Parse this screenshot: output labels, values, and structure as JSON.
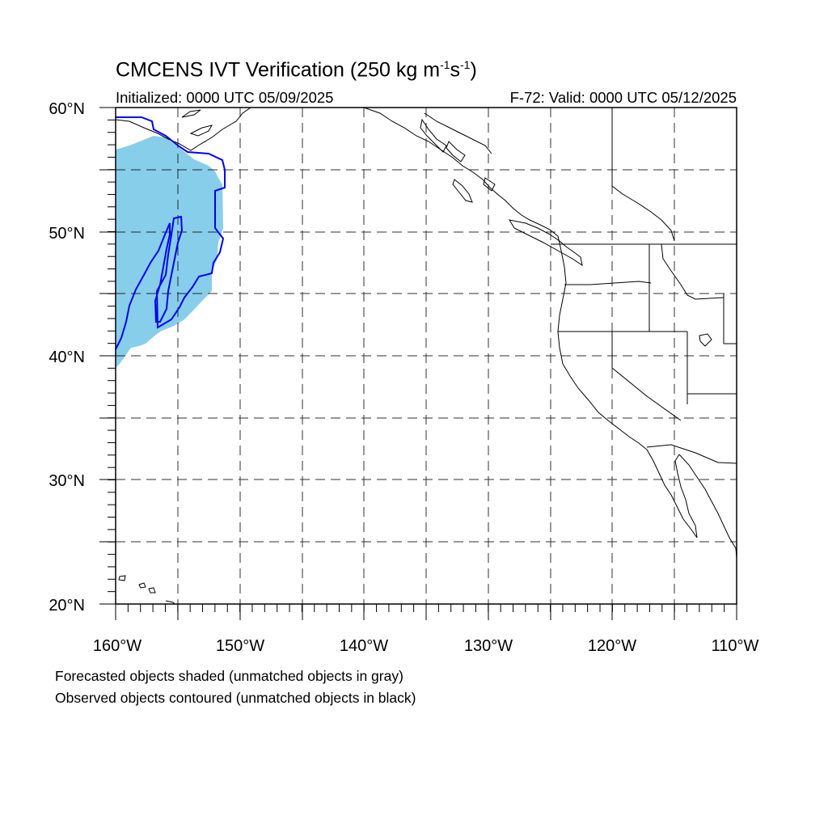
{
  "title": {
    "prefix": "CMCENS IVT Verification (250 kg m",
    "exp1": "-1",
    "mid": "s",
    "exp2": "-1",
    "suffix": ")"
  },
  "initialized": "Initialized: 0000 UTC 05/09/2025",
  "valid": "F-72: Valid: 0000 UTC 05/12/2025",
  "lat_labels": [
    "60°N",
    "50°N",
    "40°N",
    "30°N",
    "20°N"
  ],
  "lon_labels": [
    "160°W",
    "150°W",
    "140°W",
    "130°W",
    "120°W",
    "110°W"
  ],
  "map_extent": {
    "lon": [
      -160,
      -110
    ],
    "lat": [
      20,
      60
    ]
  },
  "colors": {
    "forecast_fill": "#87ceeb",
    "observed_contour": "#0000ff",
    "coastline": "#000000",
    "grid": "#000000"
  },
  "footnotes": {
    "line1": "Forecasted objects shaded (unmatched objects in gray)",
    "line2": "Observed objects contoured (unmatched objects in black)"
  }
}
